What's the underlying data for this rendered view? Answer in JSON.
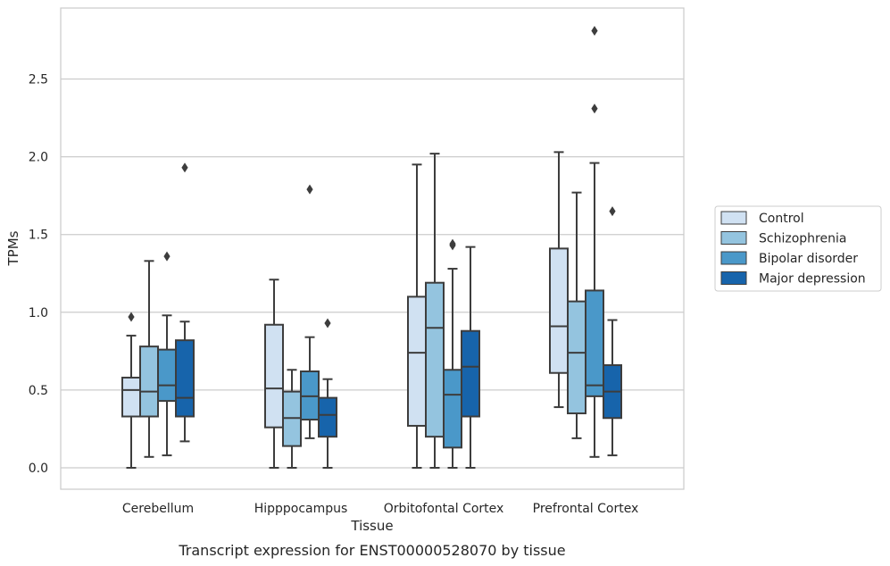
{
  "caption": "Transcript expression for ENST00000528070 by tissue",
  "chart_data": {
    "type": "box",
    "xlabel": "Tissue",
    "ylabel": "TPMs",
    "ylim": [
      -0.13,
      2.95
    ],
    "yticks": [
      "0.0",
      "0.5",
      "1.0",
      "1.5",
      "2.0",
      "2.5"
    ],
    "ytick_values": [
      0,
      0.5,
      1.0,
      1.5,
      2.0,
      2.5
    ],
    "grid": "horizontal",
    "legend_position": "outside-right",
    "categories": [
      "Cerebellum",
      "Hipppocampus",
      "Orbitofontal Cortex",
      "Prefrontal Cortex"
    ],
    "series": [
      {
        "name": "Control",
        "color": "#d0e1f2",
        "boxes": [
          {
            "min": 0.0,
            "q1": 0.33,
            "median": 0.5,
            "q3": 0.58,
            "max": 0.85,
            "outliers": [
              0.97
            ]
          },
          {
            "min": 0.0,
            "q1": 0.26,
            "median": 0.51,
            "q3": 0.92,
            "max": 1.21,
            "outliers": []
          },
          {
            "min": 0.0,
            "q1": 0.27,
            "median": 0.74,
            "q3": 1.1,
            "max": 1.95,
            "outliers": []
          },
          {
            "min": 0.39,
            "q1": 0.61,
            "median": 0.91,
            "q3": 1.41,
            "max": 2.03,
            "outliers": []
          }
        ]
      },
      {
        "name": "Schizophrenia",
        "color": "#94c4df",
        "boxes": [
          {
            "min": 0.07,
            "q1": 0.33,
            "median": 0.49,
            "q3": 0.78,
            "max": 1.33,
            "outliers": []
          },
          {
            "min": 0.0,
            "q1": 0.14,
            "median": 0.32,
            "q3": 0.49,
            "max": 0.63,
            "outliers": []
          },
          {
            "min": 0.0,
            "q1": 0.2,
            "median": 0.9,
            "q3": 1.19,
            "max": 2.02,
            "outliers": []
          },
          {
            "min": 0.19,
            "q1": 0.35,
            "median": 0.74,
            "q3": 1.07,
            "max": 1.77,
            "outliers": []
          }
        ]
      },
      {
        "name": "Bipolar disorder",
        "color": "#4a98c9",
        "boxes": [
          {
            "min": 0.08,
            "q1": 0.43,
            "median": 0.53,
            "q3": 0.76,
            "max": 0.98,
            "outliers": [
              1.36
            ]
          },
          {
            "min": 0.19,
            "q1": 0.31,
            "median": 0.46,
            "q3": 0.62,
            "max": 0.84,
            "outliers": [
              1.79
            ]
          },
          {
            "min": 0.0,
            "q1": 0.13,
            "median": 0.47,
            "q3": 0.63,
            "max": 1.28,
            "outliers": [
              1.43,
              1.44
            ]
          },
          {
            "min": 0.07,
            "q1": 0.46,
            "median": 0.53,
            "q3": 1.14,
            "max": 1.96,
            "outliers": [
              2.31,
              2.81
            ]
          }
        ]
      },
      {
        "name": "Major depression",
        "color": "#1764ab",
        "boxes": [
          {
            "min": 0.17,
            "q1": 0.33,
            "median": 0.45,
            "q3": 0.82,
            "max": 0.94,
            "outliers": [
              1.93
            ]
          },
          {
            "min": 0.0,
            "q1": 0.2,
            "median": 0.34,
            "q3": 0.45,
            "max": 0.57,
            "outliers": [
              0.93
            ]
          },
          {
            "min": 0.0,
            "q1": 0.33,
            "median": 0.65,
            "q3": 0.88,
            "max": 1.42,
            "outliers": []
          },
          {
            "min": 0.08,
            "q1": 0.32,
            "median": 0.49,
            "q3": 0.66,
            "max": 0.95,
            "outliers": [
              1.65
            ]
          }
        ]
      }
    ]
  }
}
